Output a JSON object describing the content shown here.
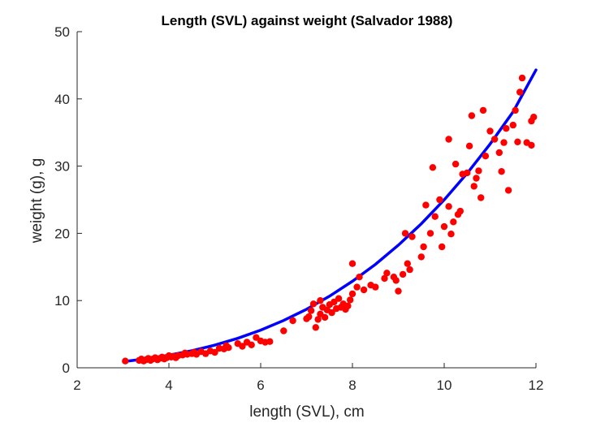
{
  "chart_data": {
    "type": "scatter",
    "title": "Length (SVL) against weight (Salvador 1988)",
    "xlabel": "length (SVL), cm",
    "ylabel": "weight (g), g",
    "xlim": [
      2,
      12
    ],
    "ylim": [
      0,
      50
    ],
    "xticks": [
      "2",
      "4",
      "6",
      "8",
      "10",
      "12"
    ],
    "yticks": [
      "0",
      "10",
      "20",
      "30",
      "40",
      "50"
    ],
    "grid": false,
    "legend": "none",
    "colors": {
      "points": "#ff0000",
      "fit": "#0000ff",
      "axis": "#262626"
    },
    "series": [
      {
        "kind": "points",
        "points": [
          [
            3.05,
            1.0
          ],
          [
            3.35,
            1.1
          ],
          [
            3.4,
            1.3
          ],
          [
            3.45,
            1.0
          ],
          [
            3.5,
            1.2
          ],
          [
            3.55,
            1.4
          ],
          [
            3.6,
            1.1
          ],
          [
            3.65,
            1.3
          ],
          [
            3.7,
            1.5
          ],
          [
            3.75,
            1.2
          ],
          [
            3.8,
            1.4
          ],
          [
            3.85,
            1.6
          ],
          [
            3.9,
            1.3
          ],
          [
            3.95,
            1.5
          ],
          [
            4.0,
            1.8
          ],
          [
            4.05,
            1.6
          ],
          [
            4.1,
            1.7
          ],
          [
            4.15,
            1.5
          ],
          [
            4.2,
            1.8
          ],
          [
            4.3,
            1.9
          ],
          [
            4.35,
            2.2
          ],
          [
            4.4,
            2.0
          ],
          [
            4.5,
            2.1
          ],
          [
            4.55,
            2.3
          ],
          [
            4.6,
            2.0
          ],
          [
            4.7,
            2.4
          ],
          [
            4.8,
            2.1
          ],
          [
            4.9,
            2.5
          ],
          [
            5.0,
            2.3
          ],
          [
            5.1,
            2.9
          ],
          [
            5.2,
            2.8
          ],
          [
            5.25,
            3.3
          ],
          [
            5.3,
            3.0
          ],
          [
            5.5,
            3.6
          ],
          [
            5.6,
            3.2
          ],
          [
            5.7,
            3.8
          ],
          [
            5.8,
            3.4
          ],
          [
            5.9,
            4.5
          ],
          [
            6.0,
            4.0
          ],
          [
            6.1,
            3.8
          ],
          [
            6.2,
            3.9
          ],
          [
            6.5,
            5.5
          ],
          [
            6.7,
            7.0
          ],
          [
            7.0,
            7.3
          ],
          [
            7.05,
            7.6
          ],
          [
            7.1,
            8.5
          ],
          [
            7.15,
            9.5
          ],
          [
            7.2,
            6.0
          ],
          [
            7.25,
            7.2
          ],
          [
            7.3,
            8.0
          ],
          [
            7.3,
            10.0
          ],
          [
            7.35,
            9.0
          ],
          [
            7.4,
            7.5
          ],
          [
            7.45,
            8.6
          ],
          [
            7.5,
            9.4
          ],
          [
            7.55,
            8.2
          ],
          [
            7.6,
            9.8
          ],
          [
            7.65,
            8.8
          ],
          [
            7.7,
            10.3
          ],
          [
            7.75,
            9.0
          ],
          [
            7.8,
            9.5
          ],
          [
            7.85,
            8.7
          ],
          [
            7.9,
            9.2
          ],
          [
            7.95,
            10.1
          ],
          [
            8.0,
            15.5
          ],
          [
            8.0,
            11.0
          ],
          [
            8.1,
            12.0
          ],
          [
            8.15,
            13.5
          ],
          [
            8.25,
            11.6
          ],
          [
            8.4,
            12.3
          ],
          [
            8.5,
            12.0
          ],
          [
            8.7,
            13.3
          ],
          [
            8.75,
            14.1
          ],
          [
            8.9,
            13.5
          ],
          [
            8.95,
            13.0
          ],
          [
            9.0,
            11.4
          ],
          [
            9.1,
            13.9
          ],
          [
            9.15,
            20.0
          ],
          [
            9.2,
            15.5
          ],
          [
            9.25,
            14.6
          ],
          [
            9.3,
            19.5
          ],
          [
            9.5,
            16.5
          ],
          [
            9.55,
            18.0
          ],
          [
            9.6,
            24.2
          ],
          [
            9.7,
            20.0
          ],
          [
            9.75,
            29.8
          ],
          [
            9.8,
            22.5
          ],
          [
            9.9,
            25.0
          ],
          [
            9.95,
            18.0
          ],
          [
            10.0,
            21.0
          ],
          [
            10.1,
            34.0
          ],
          [
            10.1,
            24.0
          ],
          [
            10.15,
            19.9
          ],
          [
            10.2,
            21.7
          ],
          [
            10.25,
            30.3
          ],
          [
            10.3,
            22.8
          ],
          [
            10.35,
            23.3
          ],
          [
            10.4,
            28.8
          ],
          [
            10.5,
            29.0
          ],
          [
            10.55,
            33.0
          ],
          [
            10.6,
            37.5
          ],
          [
            10.65,
            27.0
          ],
          [
            10.7,
            28.2
          ],
          [
            10.75,
            29.3
          ],
          [
            10.8,
            25.3
          ],
          [
            10.85,
            38.3
          ],
          [
            10.9,
            31.5
          ],
          [
            11.0,
            35.2
          ],
          [
            11.1,
            34.0
          ],
          [
            11.2,
            32.0
          ],
          [
            11.25,
            29.2
          ],
          [
            11.3,
            33.5
          ],
          [
            11.35,
            35.6
          ],
          [
            11.4,
            26.4
          ],
          [
            11.5,
            36.1
          ],
          [
            11.55,
            38.3
          ],
          [
            11.6,
            33.6
          ],
          [
            11.65,
            41.0
          ],
          [
            11.7,
            43.1
          ],
          [
            11.8,
            33.5
          ],
          [
            11.9,
            36.7
          ],
          [
            11.95,
            37.3
          ],
          [
            11.9,
            33.1
          ]
        ]
      },
      {
        "kind": "fit-curve",
        "x": [
          3.05,
          3.5,
          4.0,
          4.5,
          5.0,
          5.5,
          6.0,
          6.5,
          7.0,
          7.5,
          8.0,
          8.5,
          9.0,
          9.5,
          10.0,
          10.5,
          11.0,
          11.5,
          12.0
        ],
        "y": [
          0.96,
          1.34,
          1.87,
          2.54,
          3.37,
          4.39,
          5.6,
          7.04,
          8.71,
          10.65,
          12.87,
          15.39,
          18.24,
          21.43,
          24.99,
          28.94,
          33.29,
          38.07,
          44.3
        ]
      }
    ]
  }
}
